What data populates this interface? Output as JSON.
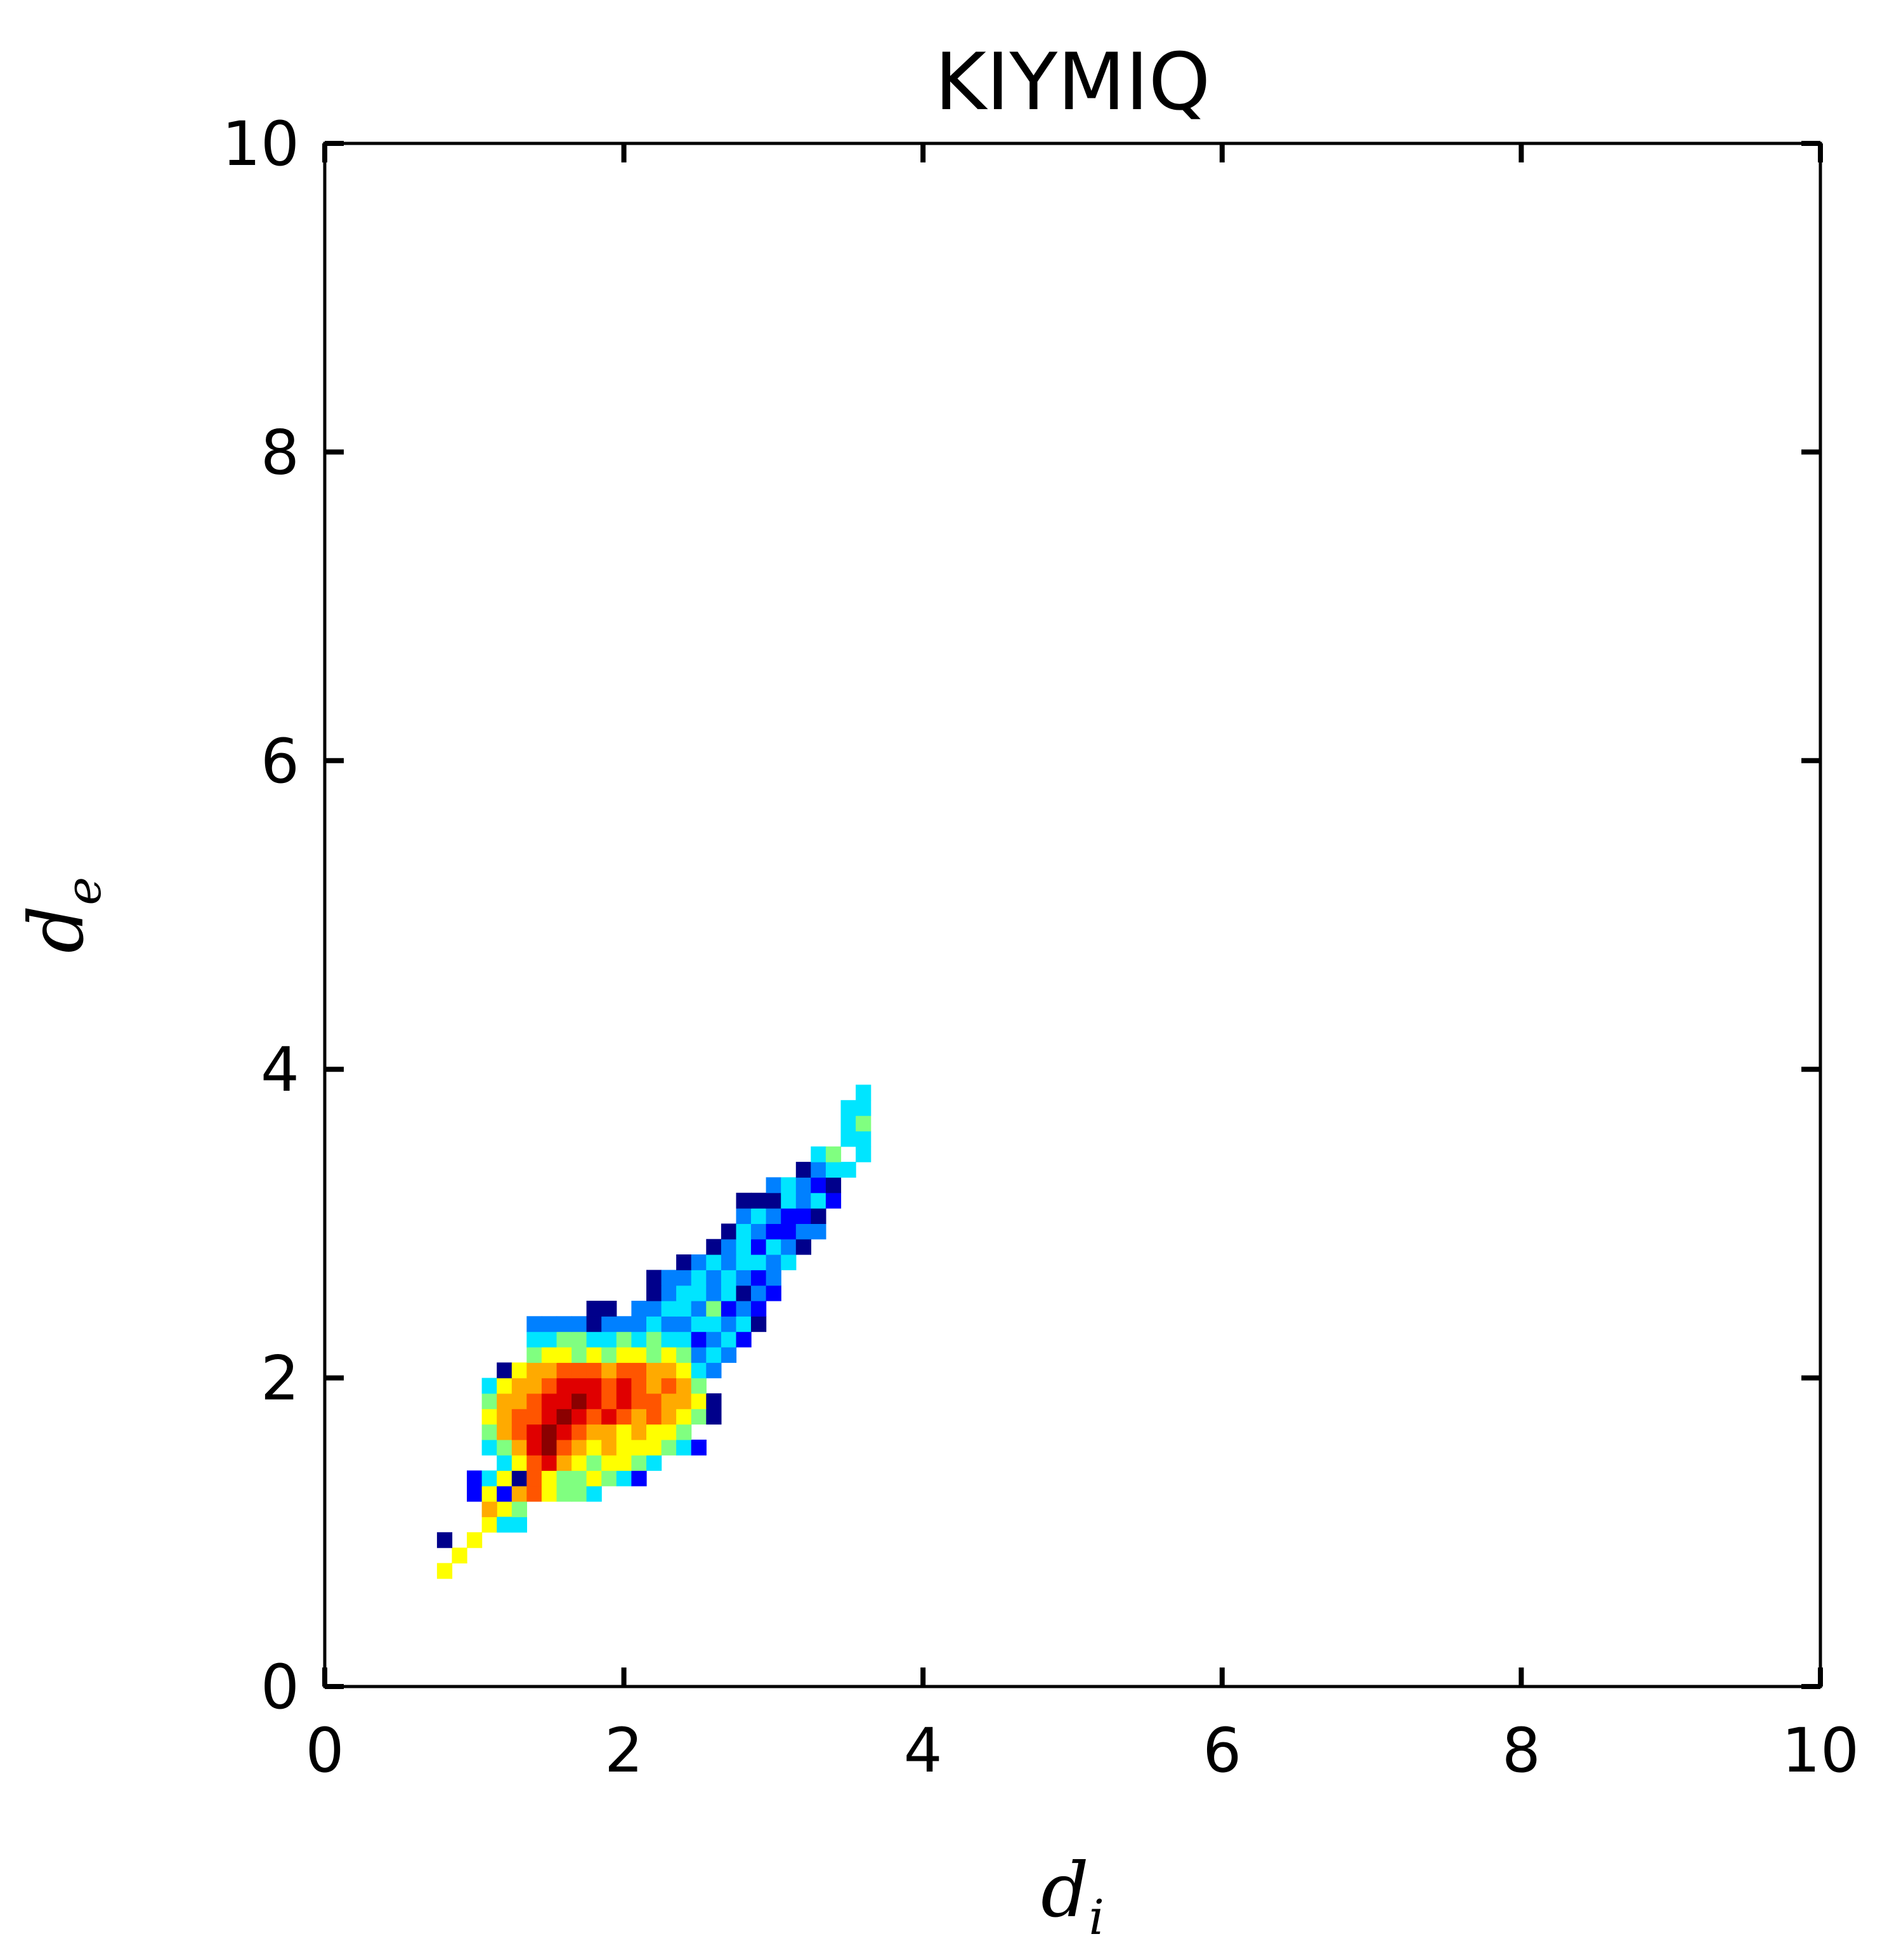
{
  "chart_data": {
    "type": "heatmap",
    "title": "KIYMIQ",
    "xlabel": {
      "main": "d",
      "sub": "i"
    },
    "ylabel": {
      "main": "d",
      "sub": "e"
    },
    "xlim": [
      0,
      10
    ],
    "ylim": [
      0,
      10
    ],
    "xticks": [
      "0",
      "2",
      "4",
      "6",
      "8",
      "10"
    ],
    "yticks": [
      "0",
      "2",
      "4",
      "6",
      "8",
      "10"
    ],
    "grid": false,
    "colormap": "jet",
    "bin_size": 0.1,
    "colors": {
      "0": "#00008b",
      "1": "#0000ff",
      "2": "#0080ff",
      "3": "#00e5ff",
      "4": "#80ff80",
      "5": "#ffff00",
      "6": "#ffaa00",
      "7": "#ff5500",
      "8": "#e00000",
      "9": "#8b0000"
    },
    "cells": [
      [
        0.8,
        0.75,
        5
      ],
      [
        0.9,
        0.85,
        5
      ],
      [
        0.8,
        0.95,
        0
      ],
      [
        1.0,
        0.95,
        5
      ],
      [
        1.1,
        1.05,
        5
      ],
      [
        1.2,
        1.15,
        5
      ],
      [
        1.2,
        1.05,
        3
      ],
      [
        1.3,
        1.05,
        3
      ],
      [
        1.1,
        1.15,
        6
      ],
      [
        1.3,
        1.15,
        4
      ],
      [
        1.0,
        1.25,
        1
      ],
      [
        1.1,
        1.25,
        5
      ],
      [
        1.2,
        1.25,
        1
      ],
      [
        1.3,
        1.25,
        6
      ],
      [
        1.4,
        1.25,
        7
      ],
      [
        1.5,
        1.25,
        5
      ],
      [
        1.6,
        1.25,
        4
      ],
      [
        1.7,
        1.25,
        4
      ],
      [
        1.8,
        1.25,
        3
      ],
      [
        1.0,
        1.35,
        1
      ],
      [
        1.1,
        1.35,
        3
      ],
      [
        1.2,
        1.35,
        5
      ],
      [
        1.3,
        1.35,
        0
      ],
      [
        1.4,
        1.35,
        7
      ],
      [
        1.5,
        1.35,
        5
      ],
      [
        1.6,
        1.35,
        4
      ],
      [
        1.7,
        1.35,
        4
      ],
      [
        1.8,
        1.35,
        5
      ],
      [
        1.9,
        1.35,
        4
      ],
      [
        2.0,
        1.35,
        3
      ],
      [
        2.1,
        1.35,
        1
      ],
      [
        1.2,
        1.45,
        3
      ],
      [
        1.3,
        1.45,
        5
      ],
      [
        1.4,
        1.45,
        7
      ],
      [
        1.5,
        1.45,
        8
      ],
      [
        1.6,
        1.45,
        6
      ],
      [
        1.7,
        1.45,
        5
      ],
      [
        1.8,
        1.45,
        4
      ],
      [
        1.9,
        1.45,
        5
      ],
      [
        2.0,
        1.45,
        5
      ],
      [
        2.1,
        1.45,
        4
      ],
      [
        2.2,
        1.45,
        3
      ],
      [
        1.1,
        1.55,
        3
      ],
      [
        1.2,
        1.55,
        4
      ],
      [
        1.3,
        1.55,
        6
      ],
      [
        1.4,
        1.55,
        8
      ],
      [
        1.5,
        1.55,
        9
      ],
      [
        1.6,
        1.55,
        7
      ],
      [
        1.7,
        1.55,
        6
      ],
      [
        1.8,
        1.55,
        5
      ],
      [
        1.9,
        1.55,
        6
      ],
      [
        2.0,
        1.55,
        5
      ],
      [
        2.1,
        1.55,
        5
      ],
      [
        2.2,
        1.55,
        5
      ],
      [
        2.3,
        1.55,
        4
      ],
      [
        2.4,
        1.55,
        3
      ],
      [
        2.5,
        1.55,
        1
      ],
      [
        1.1,
        1.65,
        4
      ],
      [
        1.2,
        1.65,
        6
      ],
      [
        1.3,
        1.65,
        7
      ],
      [
        1.4,
        1.65,
        8
      ],
      [
        1.5,
        1.65,
        9
      ],
      [
        1.6,
        1.65,
        8
      ],
      [
        1.7,
        1.65,
        7
      ],
      [
        1.8,
        1.65,
        6
      ],
      [
        1.9,
        1.65,
        6
      ],
      [
        2.0,
        1.65,
        5
      ],
      [
        2.1,
        1.65,
        6
      ],
      [
        2.2,
        1.65,
        5
      ],
      [
        2.3,
        1.65,
        5
      ],
      [
        2.4,
        1.65,
        4
      ],
      [
        1.1,
        1.75,
        5
      ],
      [
        1.2,
        1.75,
        6
      ],
      [
        1.3,
        1.75,
        7
      ],
      [
        1.4,
        1.75,
        7
      ],
      [
        1.5,
        1.75,
        8
      ],
      [
        1.6,
        1.75,
        9
      ],
      [
        1.7,
        1.75,
        8
      ],
      [
        1.8,
        1.75,
        7
      ],
      [
        1.9,
        1.75,
        8
      ],
      [
        2.0,
        1.75,
        7
      ],
      [
        2.1,
        1.75,
        6
      ],
      [
        2.2,
        1.75,
        7
      ],
      [
        2.3,
        1.75,
        6
      ],
      [
        2.4,
        1.75,
        5
      ],
      [
        2.5,
        1.75,
        4
      ],
      [
        2.6,
        1.75,
        0
      ],
      [
        1.1,
        1.85,
        4
      ],
      [
        1.2,
        1.85,
        6
      ],
      [
        1.3,
        1.85,
        6
      ],
      [
        1.4,
        1.85,
        7
      ],
      [
        1.5,
        1.85,
        8
      ],
      [
        1.6,
        1.85,
        8
      ],
      [
        1.7,
        1.85,
        9
      ],
      [
        1.8,
        1.85,
        8
      ],
      [
        1.9,
        1.85,
        7
      ],
      [
        2.0,
        1.85,
        8
      ],
      [
        2.1,
        1.85,
        7
      ],
      [
        2.2,
        1.85,
        7
      ],
      [
        2.3,
        1.85,
        6
      ],
      [
        2.4,
        1.85,
        6
      ],
      [
        2.5,
        1.85,
        5
      ],
      [
        2.6,
        1.85,
        0
      ],
      [
        1.1,
        1.95,
        3
      ],
      [
        1.2,
        1.95,
        5
      ],
      [
        1.3,
        1.95,
        6
      ],
      [
        1.4,
        1.95,
        6
      ],
      [
        1.5,
        1.95,
        7
      ],
      [
        1.6,
        1.95,
        8
      ],
      [
        1.7,
        1.95,
        8
      ],
      [
        1.8,
        1.95,
        8
      ],
      [
        1.9,
        1.95,
        7
      ],
      [
        2.0,
        1.95,
        8
      ],
      [
        2.1,
        1.95,
        7
      ],
      [
        2.2,
        1.95,
        6
      ],
      [
        2.3,
        1.95,
        7
      ],
      [
        2.4,
        1.95,
        6
      ],
      [
        2.5,
        1.95,
        4
      ],
      [
        1.2,
        2.05,
        0
      ],
      [
        1.3,
        2.05,
        5
      ],
      [
        1.4,
        2.05,
        6
      ],
      [
        1.5,
        2.05,
        6
      ],
      [
        1.6,
        2.05,
        7
      ],
      [
        1.7,
        2.05,
        7
      ],
      [
        1.8,
        2.05,
        7
      ],
      [
        1.9,
        2.05,
        6
      ],
      [
        2.0,
        2.05,
        7
      ],
      [
        2.1,
        2.05,
        7
      ],
      [
        2.2,
        2.05,
        6
      ],
      [
        2.3,
        2.05,
        6
      ],
      [
        2.4,
        2.05,
        5
      ],
      [
        2.5,
        2.05,
        3
      ],
      [
        2.6,
        2.05,
        2
      ],
      [
        1.4,
        2.15,
        4
      ],
      [
        1.5,
        2.15,
        5
      ],
      [
        1.6,
        2.15,
        5
      ],
      [
        1.7,
        2.15,
        4
      ],
      [
        1.8,
        2.15,
        5
      ],
      [
        1.9,
        2.15,
        4
      ],
      [
        2.0,
        2.15,
        5
      ],
      [
        2.1,
        2.15,
        5
      ],
      [
        2.2,
        2.15,
        4
      ],
      [
        2.3,
        2.15,
        5
      ],
      [
        2.4,
        2.15,
        4
      ],
      [
        2.5,
        2.15,
        2
      ],
      [
        2.6,
        2.15,
        3
      ],
      [
        2.7,
        2.15,
        2
      ],
      [
        1.4,
        2.25,
        3
      ],
      [
        1.5,
        2.25,
        3
      ],
      [
        1.6,
        2.25,
        4
      ],
      [
        1.7,
        2.25,
        4
      ],
      [
        1.8,
        2.25,
        3
      ],
      [
        1.9,
        2.25,
        3
      ],
      [
        2.0,
        2.25,
        4
      ],
      [
        2.1,
        2.25,
        3
      ],
      [
        2.2,
        2.25,
        4
      ],
      [
        2.3,
        2.25,
        3
      ],
      [
        2.4,
        2.25,
        3
      ],
      [
        2.5,
        2.25,
        1
      ],
      [
        2.6,
        2.25,
        2
      ],
      [
        2.7,
        2.25,
        3
      ],
      [
        2.8,
        2.25,
        1
      ],
      [
        1.4,
        2.35,
        2
      ],
      [
        1.5,
        2.35,
        2
      ],
      [
        1.6,
        2.35,
        2
      ],
      [
        1.7,
        2.35,
        2
      ],
      [
        1.8,
        2.35,
        0
      ],
      [
        1.9,
        2.35,
        2
      ],
      [
        2.0,
        2.35,
        2
      ],
      [
        2.1,
        2.35,
        2
      ],
      [
        2.2,
        2.35,
        3
      ],
      [
        2.3,
        2.35,
        2
      ],
      [
        2.4,
        2.35,
        2
      ],
      [
        2.5,
        2.35,
        3
      ],
      [
        2.6,
        2.35,
        3
      ],
      [
        2.7,
        2.35,
        2
      ],
      [
        2.8,
        2.35,
        3
      ],
      [
        2.9,
        2.35,
        0
      ],
      [
        1.8,
        2.45,
        0
      ],
      [
        1.9,
        2.45,
        0
      ],
      [
        2.1,
        2.45,
        2
      ],
      [
        2.2,
        2.45,
        2
      ],
      [
        2.3,
        2.45,
        3
      ],
      [
        2.4,
        2.45,
        3
      ],
      [
        2.5,
        2.45,
        2
      ],
      [
        2.6,
        2.45,
        4
      ],
      [
        2.7,
        2.45,
        1
      ],
      [
        2.8,
        2.45,
        2
      ],
      [
        2.9,
        2.45,
        1
      ],
      [
        2.2,
        2.55,
        0
      ],
      [
        2.3,
        2.55,
        2
      ],
      [
        2.4,
        2.55,
        3
      ],
      [
        2.5,
        2.55,
        3
      ],
      [
        2.6,
        2.55,
        2
      ],
      [
        2.7,
        2.55,
        3
      ],
      [
        2.8,
        2.55,
        0
      ],
      [
        2.9,
        2.55,
        2
      ],
      [
        3.0,
        2.55,
        1
      ],
      [
        2.2,
        2.65,
        0
      ],
      [
        2.3,
        2.65,
        2
      ],
      [
        2.4,
        2.65,
        2
      ],
      [
        2.5,
        2.65,
        3
      ],
      [
        2.6,
        2.65,
        2
      ],
      [
        2.7,
        2.65,
        3
      ],
      [
        2.8,
        2.65,
        2
      ],
      [
        2.9,
        2.65,
        1
      ],
      [
        3.0,
        2.65,
        2
      ],
      [
        2.4,
        2.75,
        0
      ],
      [
        2.5,
        2.75,
        2
      ],
      [
        2.6,
        2.75,
        3
      ],
      [
        2.7,
        2.75,
        2
      ],
      [
        2.8,
        2.75,
        3
      ],
      [
        2.9,
        2.75,
        3
      ],
      [
        3.0,
        2.75,
        2
      ],
      [
        3.1,
        2.75,
        3
      ],
      [
        2.6,
        2.85,
        0
      ],
      [
        2.7,
        2.85,
        2
      ],
      [
        2.8,
        2.85,
        3
      ],
      [
        2.9,
        2.85,
        1
      ],
      [
        3.0,
        2.85,
        3
      ],
      [
        3.1,
        2.85,
        2
      ],
      [
        3.2,
        2.85,
        0
      ],
      [
        2.7,
        2.95,
        0
      ],
      [
        2.8,
        2.95,
        3
      ],
      [
        2.9,
        2.95,
        2
      ],
      [
        3.0,
        2.95,
        1
      ],
      [
        3.1,
        2.95,
        1
      ],
      [
        3.2,
        2.95,
        2
      ],
      [
        3.3,
        2.95,
        2
      ],
      [
        2.8,
        3.05,
        2
      ],
      [
        2.9,
        3.05,
        3
      ],
      [
        3.0,
        3.05,
        2
      ],
      [
        3.1,
        3.05,
        1
      ],
      [
        3.2,
        3.05,
        1
      ],
      [
        3.3,
        3.05,
        0
      ],
      [
        2.8,
        3.15,
        0
      ],
      [
        2.9,
        3.15,
        0
      ],
      [
        3.0,
        3.15,
        0
      ],
      [
        3.1,
        3.15,
        3
      ],
      [
        3.2,
        3.15,
        2
      ],
      [
        3.3,
        3.15,
        3
      ],
      [
        3.4,
        3.15,
        1
      ],
      [
        3.0,
        3.25,
        2
      ],
      [
        3.1,
        3.25,
        3
      ],
      [
        3.2,
        3.25,
        2
      ],
      [
        3.3,
        3.25,
        1
      ],
      [
        3.4,
        3.25,
        0
      ],
      [
        3.2,
        3.35,
        0
      ],
      [
        3.3,
        3.35,
        2
      ],
      [
        3.4,
        3.35,
        3
      ],
      [
        3.5,
        3.35,
        3
      ],
      [
        3.3,
        3.45,
        3
      ],
      [
        3.4,
        3.45,
        4
      ],
      [
        3.6,
        3.45,
        3
      ],
      [
        3.5,
        3.55,
        3
      ],
      [
        3.6,
        3.55,
        3
      ],
      [
        3.5,
        3.65,
        3
      ],
      [
        3.6,
        3.65,
        4
      ],
      [
        3.5,
        3.75,
        3
      ],
      [
        3.6,
        3.75,
        3
      ],
      [
        3.6,
        3.85,
        3
      ]
    ]
  }
}
